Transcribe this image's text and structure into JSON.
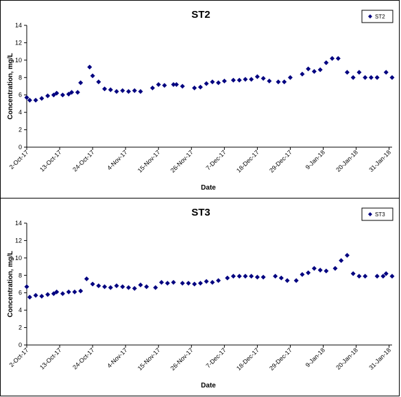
{
  "chart_data": [
    {
      "type": "scatter",
      "title": "ST2",
      "xlabel": "Date",
      "ylabel": "Concentration, mg/L",
      "ylim": [
        0,
        14
      ],
      "yticks": [
        0,
        2,
        4,
        6,
        8,
        10,
        12,
        14
      ],
      "xlim": [
        "2017-10-02",
        "2018-02-01"
      ],
      "xtick_labels": [
        "2-Oct-17",
        "13-Oct-17",
        "24-Oct-17",
        "4-Nov-17",
        "15-Nov-17",
        "26-Nov-17",
        "7-Dec-17",
        "18-Dec-17",
        "29-Dec-17",
        "9-Jan-18",
        "20-Jan-18",
        "31-Jan-18"
      ],
      "xtick_dates": [
        "2017-10-02",
        "2017-10-13",
        "2017-10-24",
        "2017-11-04",
        "2017-11-15",
        "2017-11-26",
        "2017-12-07",
        "2017-12-18",
        "2017-12-29",
        "2018-01-09",
        "2018-01-20",
        "2018-01-31"
      ],
      "legend": "top-right",
      "series": [
        {
          "name": "ST2",
          "color": "#000080",
          "marker": "diamond",
          "x": [
            "2017-10-02",
            "2017-10-03",
            "2017-10-05",
            "2017-10-07",
            "2017-10-09",
            "2017-10-11",
            "2017-10-12",
            "2017-10-14",
            "2017-10-16",
            "2017-10-17",
            "2017-10-19",
            "2017-10-20",
            "2017-10-23",
            "2017-10-24",
            "2017-10-26",
            "2017-10-28",
            "2017-10-30",
            "2017-11-01",
            "2017-11-03",
            "2017-11-05",
            "2017-11-07",
            "2017-11-09",
            "2017-11-13",
            "2017-11-15",
            "2017-11-17",
            "2017-11-20",
            "2017-11-21",
            "2017-11-23",
            "2017-11-27",
            "2017-11-29",
            "2017-12-01",
            "2017-12-03",
            "2017-12-05",
            "2017-12-07",
            "2017-12-10",
            "2017-12-12",
            "2017-12-14",
            "2017-12-16",
            "2017-12-18",
            "2017-12-20",
            "2017-12-22",
            "2017-12-25",
            "2017-12-27",
            "2017-12-29",
            "2018-01-02",
            "2018-01-04",
            "2018-01-06",
            "2018-01-08",
            "2018-01-10",
            "2018-01-12",
            "2018-01-14",
            "2018-01-17",
            "2018-01-19",
            "2018-01-21",
            "2018-01-23",
            "2018-01-25",
            "2018-01-27",
            "2018-01-30",
            "2018-02-01"
          ],
          "y": [
            5.7,
            5.4,
            5.4,
            5.6,
            5.9,
            6.0,
            6.2,
            6.0,
            6.1,
            6.3,
            6.3,
            7.4,
            9.2,
            8.2,
            7.5,
            6.7,
            6.6,
            6.4,
            6.5,
            6.4,
            6.5,
            6.4,
            6.8,
            7.2,
            7.1,
            7.2,
            7.2,
            7.0,
            6.8,
            6.9,
            7.3,
            7.5,
            7.4,
            7.6,
            7.7,
            7.7,
            7.8,
            7.8,
            8.1,
            7.9,
            7.6,
            7.5,
            7.5,
            8.0,
            8.4,
            9.0,
            8.7,
            8.9,
            9.7,
            10.2,
            10.2,
            8.6,
            8.0,
            8.6,
            8.0,
            8.0,
            8.0,
            8.6,
            8.0
          ],
          "note": ""
        }
      ]
    },
    {
      "type": "scatter",
      "title": "ST3",
      "xlabel": "Date",
      "ylabel": "Concentration, mg/L",
      "ylim": [
        0,
        14
      ],
      "yticks": [
        0,
        2,
        4,
        6,
        8,
        10,
        12,
        14
      ],
      "xlim": [
        "2017-10-02",
        "2018-02-01"
      ],
      "xtick_labels": [
        "2-Oct-17",
        "13-Oct-17",
        "24-Oct-17",
        "4-Nov-17",
        "15-Nov-17",
        "26-Nov-17",
        "7-Dec-17",
        "18-Dec-17",
        "29-Dec-17",
        "9-Jan-18",
        "20-Jan-18",
        "31-Jan-18"
      ],
      "xtick_dates": [
        "2017-10-02",
        "2017-10-13",
        "2017-10-24",
        "2017-11-04",
        "2017-11-15",
        "2017-11-26",
        "2017-12-07",
        "2017-12-18",
        "2017-12-29",
        "2018-01-09",
        "2018-01-20",
        "2018-01-31"
      ],
      "legend": "top-right",
      "series": [
        {
          "name": "ST3",
          "color": "#000080",
          "marker": "diamond",
          "x": [
            "2017-10-02",
            "2017-10-03",
            "2017-10-05",
            "2017-10-07",
            "2017-10-09",
            "2017-10-11",
            "2017-10-12",
            "2017-10-14",
            "2017-10-16",
            "2017-10-18",
            "2017-10-20",
            "2017-10-22",
            "2017-10-24",
            "2017-10-26",
            "2017-10-28",
            "2017-10-30",
            "2017-11-01",
            "2017-11-03",
            "2017-11-05",
            "2017-11-07",
            "2017-11-09",
            "2017-11-11",
            "2017-11-14",
            "2017-11-16",
            "2017-11-18",
            "2017-11-20",
            "2017-11-23",
            "2017-11-25",
            "2017-11-27",
            "2017-11-29",
            "2017-12-01",
            "2017-12-03",
            "2017-12-05",
            "2017-12-08",
            "2017-12-10",
            "2017-12-12",
            "2017-12-14",
            "2017-12-16",
            "2017-12-18",
            "2017-12-20",
            "2017-12-24",
            "2017-12-26",
            "2017-12-28",
            "2017-12-31",
            "2018-01-02",
            "2018-01-04",
            "2018-01-06",
            "2018-01-08",
            "2018-01-10",
            "2018-01-13",
            "2018-01-15",
            "2018-01-17",
            "2018-01-19",
            "2018-01-21",
            "2018-01-23",
            "2018-01-27",
            "2018-01-29",
            "2018-01-30",
            "2018-02-01"
          ],
          "y": [
            6.7,
            5.5,
            5.7,
            5.6,
            5.8,
            5.9,
            6.1,
            5.9,
            6.1,
            6.1,
            6.2,
            7.6,
            7.0,
            6.8,
            6.7,
            6.6,
            6.8,
            6.7,
            6.6,
            6.5,
            6.9,
            6.7,
            6.6,
            7.2,
            7.1,
            7.2,
            7.1,
            7.1,
            7.0,
            7.1,
            7.3,
            7.2,
            7.4,
            7.7,
            7.9,
            7.9,
            7.9,
            7.9,
            7.8,
            7.8,
            7.9,
            7.7,
            7.4,
            7.4,
            8.1,
            8.3,
            8.8,
            8.6,
            8.5,
            8.8,
            9.7,
            10.3,
            8.2,
            7.9,
            7.9,
            7.9,
            7.9,
            8.2,
            7.9
          ],
          "note": ""
        }
      ]
    }
  ]
}
